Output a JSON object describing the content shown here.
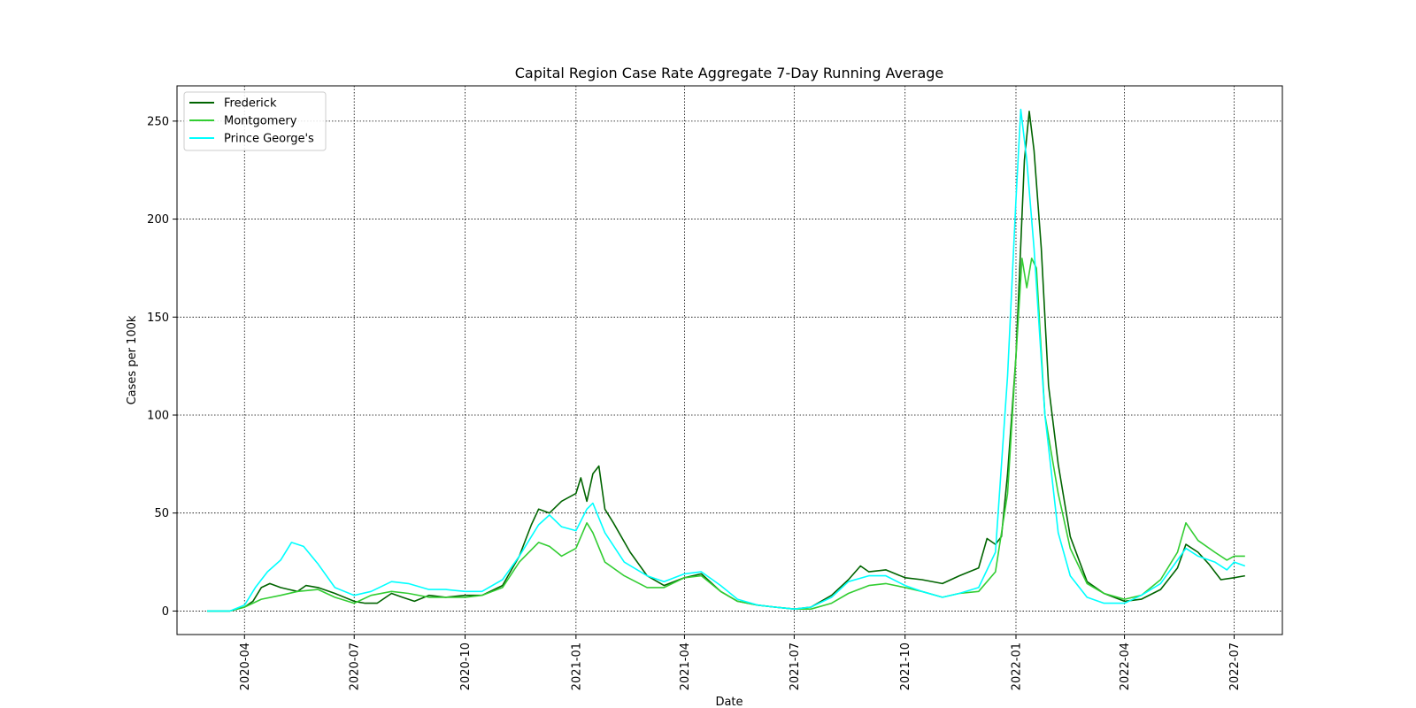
{
  "chart_data": {
    "type": "line",
    "title": "Capital Region Case Rate Aggregate 7-Day Running Average",
    "xlabel": "Date",
    "ylabel": "Cases per 100k",
    "x_type": "date",
    "xlim": [
      "2020-02-05",
      "2022-08-10"
    ],
    "ylim": [
      -12,
      268
    ],
    "x_ticks": [
      "2020-04",
      "2020-07",
      "2020-10",
      "2021-01",
      "2021-04",
      "2021-07",
      "2021-10",
      "2022-01",
      "2022-04",
      "2022-07"
    ],
    "y_ticks": [
      0,
      50,
      100,
      150,
      200,
      250
    ],
    "grid": true,
    "legend_position": "top-left",
    "series": [
      {
        "name": "Frederick",
        "color": "#006400",
        "points": [
          [
            "2020-03-01",
            0
          ],
          [
            "2020-03-20",
            0
          ],
          [
            "2020-04-01",
            2
          ],
          [
            "2020-04-08",
            5
          ],
          [
            "2020-04-15",
            12
          ],
          [
            "2020-04-22",
            14
          ],
          [
            "2020-05-01",
            12
          ],
          [
            "2020-05-08",
            11
          ],
          [
            "2020-05-15",
            10
          ],
          [
            "2020-05-22",
            13
          ],
          [
            "2020-06-01",
            12
          ],
          [
            "2020-06-15",
            9
          ],
          [
            "2020-07-01",
            5
          ],
          [
            "2020-07-10",
            4
          ],
          [
            "2020-07-20",
            4
          ],
          [
            "2020-08-01",
            9
          ],
          [
            "2020-08-10",
            7
          ],
          [
            "2020-08-20",
            5
          ],
          [
            "2020-09-01",
            8
          ],
          [
            "2020-09-15",
            7
          ],
          [
            "2020-10-01",
            8
          ],
          [
            "2020-10-15",
            8
          ],
          [
            "2020-11-01",
            13
          ],
          [
            "2020-11-15",
            28
          ],
          [
            "2020-11-25",
            44
          ],
          [
            "2020-12-01",
            52
          ],
          [
            "2020-12-10",
            50
          ],
          [
            "2020-12-20",
            56
          ],
          [
            "2021-01-01",
            60
          ],
          [
            "2021-01-05",
            68
          ],
          [
            "2021-01-10",
            56
          ],
          [
            "2021-01-15",
            70
          ],
          [
            "2021-01-20",
            74
          ],
          [
            "2021-01-25",
            52
          ],
          [
            "2021-02-01",
            45
          ],
          [
            "2021-02-15",
            30
          ],
          [
            "2021-03-01",
            18
          ],
          [
            "2021-03-15",
            13
          ],
          [
            "2021-04-01",
            17
          ],
          [
            "2021-04-15",
            19
          ],
          [
            "2021-05-01",
            10
          ],
          [
            "2021-05-15",
            5
          ],
          [
            "2021-06-01",
            3
          ],
          [
            "2021-06-15",
            2
          ],
          [
            "2021-07-01",
            1
          ],
          [
            "2021-07-15",
            2
          ],
          [
            "2021-08-01",
            8
          ],
          [
            "2021-08-15",
            16
          ],
          [
            "2021-08-25",
            23
          ],
          [
            "2021-09-01",
            20
          ],
          [
            "2021-09-15",
            21
          ],
          [
            "2021-10-01",
            17
          ],
          [
            "2021-10-15",
            16
          ],
          [
            "2021-11-01",
            14
          ],
          [
            "2021-11-15",
            18
          ],
          [
            "2021-12-01",
            22
          ],
          [
            "2021-12-08",
            37
          ],
          [
            "2021-12-15",
            34
          ],
          [
            "2021-12-20",
            38
          ],
          [
            "2021-12-25",
            70
          ],
          [
            "2022-01-01",
            130
          ],
          [
            "2022-01-08",
            230
          ],
          [
            "2022-01-12",
            255
          ],
          [
            "2022-01-16",
            235
          ],
          [
            "2022-01-22",
            185
          ],
          [
            "2022-01-28",
            115
          ],
          [
            "2022-02-05",
            75
          ],
          [
            "2022-02-15",
            38
          ],
          [
            "2022-03-01",
            15
          ],
          [
            "2022-03-15",
            9
          ],
          [
            "2022-04-01",
            5
          ],
          [
            "2022-04-15",
            6
          ],
          [
            "2022-05-01",
            11
          ],
          [
            "2022-05-15",
            22
          ],
          [
            "2022-05-22",
            34
          ],
          [
            "2022-06-01",
            30
          ],
          [
            "2022-06-10",
            24
          ],
          [
            "2022-06-20",
            16
          ],
          [
            "2022-07-01",
            17
          ],
          [
            "2022-07-10",
            18
          ]
        ]
      },
      {
        "name": "Montgomery",
        "color": "#32cd32",
        "points": [
          [
            "2020-03-01",
            0
          ],
          [
            "2020-03-20",
            0
          ],
          [
            "2020-04-01",
            2
          ],
          [
            "2020-04-15",
            6
          ],
          [
            "2020-05-01",
            8
          ],
          [
            "2020-05-15",
            10
          ],
          [
            "2020-06-01",
            11
          ],
          [
            "2020-06-15",
            7
          ],
          [
            "2020-07-01",
            4
          ],
          [
            "2020-07-15",
            8
          ],
          [
            "2020-08-01",
            10
          ],
          [
            "2020-08-15",
            9
          ],
          [
            "2020-09-01",
            7
          ],
          [
            "2020-09-15",
            7
          ],
          [
            "2020-10-01",
            7
          ],
          [
            "2020-10-15",
            8
          ],
          [
            "2020-11-01",
            12
          ],
          [
            "2020-11-15",
            25
          ],
          [
            "2020-12-01",
            35
          ],
          [
            "2020-12-10",
            33
          ],
          [
            "2020-12-20",
            28
          ],
          [
            "2021-01-01",
            32
          ],
          [
            "2021-01-10",
            45
          ],
          [
            "2021-01-15",
            40
          ],
          [
            "2021-01-25",
            25
          ],
          [
            "2021-02-10",
            18
          ],
          [
            "2021-03-01",
            12
          ],
          [
            "2021-03-15",
            12
          ],
          [
            "2021-04-01",
            17
          ],
          [
            "2021-04-15",
            18
          ],
          [
            "2021-05-01",
            10
          ],
          [
            "2021-05-15",
            5
          ],
          [
            "2021-06-01",
            3
          ],
          [
            "2021-06-15",
            2
          ],
          [
            "2021-07-01",
            1
          ],
          [
            "2021-07-15",
            1
          ],
          [
            "2021-08-01",
            4
          ],
          [
            "2021-08-15",
            9
          ],
          [
            "2021-09-01",
            13
          ],
          [
            "2021-09-15",
            14
          ],
          [
            "2021-10-01",
            12
          ],
          [
            "2021-10-15",
            10
          ],
          [
            "2021-11-01",
            7
          ],
          [
            "2021-11-15",
            9
          ],
          [
            "2021-12-01",
            10
          ],
          [
            "2021-12-15",
            20
          ],
          [
            "2021-12-25",
            60
          ],
          [
            "2022-01-01",
            130
          ],
          [
            "2022-01-06",
            180
          ],
          [
            "2022-01-10",
            165
          ],
          [
            "2022-01-14",
            180
          ],
          [
            "2022-01-18",
            175
          ],
          [
            "2022-01-25",
            100
          ],
          [
            "2022-02-05",
            60
          ],
          [
            "2022-02-15",
            32
          ],
          [
            "2022-03-01",
            14
          ],
          [
            "2022-03-15",
            9
          ],
          [
            "2022-04-01",
            6
          ],
          [
            "2022-04-15",
            8
          ],
          [
            "2022-05-01",
            16
          ],
          [
            "2022-05-15",
            30
          ],
          [
            "2022-05-22",
            45
          ],
          [
            "2022-06-01",
            36
          ],
          [
            "2022-06-15",
            30
          ],
          [
            "2022-06-25",
            26
          ],
          [
            "2022-07-01",
            28
          ],
          [
            "2022-07-10",
            28
          ]
        ]
      },
      {
        "name": "Prince George's",
        "color": "#00ffff",
        "points": [
          [
            "2020-03-01",
            0
          ],
          [
            "2020-03-20",
            0
          ],
          [
            "2020-04-01",
            3
          ],
          [
            "2020-04-10",
            12
          ],
          [
            "2020-04-20",
            20
          ],
          [
            "2020-05-01",
            26
          ],
          [
            "2020-05-10",
            35
          ],
          [
            "2020-05-20",
            33
          ],
          [
            "2020-06-01",
            24
          ],
          [
            "2020-06-15",
            12
          ],
          [
            "2020-07-01",
            8
          ],
          [
            "2020-07-15",
            10
          ],
          [
            "2020-08-01",
            15
          ],
          [
            "2020-08-15",
            14
          ],
          [
            "2020-09-01",
            11
          ],
          [
            "2020-09-15",
            11
          ],
          [
            "2020-10-01",
            10
          ],
          [
            "2020-10-15",
            10
          ],
          [
            "2020-11-01",
            16
          ],
          [
            "2020-11-15",
            28
          ],
          [
            "2020-11-25",
            38
          ],
          [
            "2020-12-01",
            44
          ],
          [
            "2020-12-10",
            49
          ],
          [
            "2020-12-20",
            43
          ],
          [
            "2021-01-01",
            41
          ],
          [
            "2021-01-10",
            52
          ],
          [
            "2021-01-15",
            55
          ],
          [
            "2021-01-25",
            40
          ],
          [
            "2021-02-10",
            25
          ],
          [
            "2021-03-01",
            18
          ],
          [
            "2021-03-15",
            15
          ],
          [
            "2021-04-01",
            19
          ],
          [
            "2021-04-15",
            20
          ],
          [
            "2021-05-01",
            13
          ],
          [
            "2021-05-15",
            6
          ],
          [
            "2021-06-01",
            3
          ],
          [
            "2021-06-15",
            2
          ],
          [
            "2021-07-01",
            1
          ],
          [
            "2021-07-15",
            2
          ],
          [
            "2021-08-01",
            7
          ],
          [
            "2021-08-15",
            15
          ],
          [
            "2021-09-01",
            18
          ],
          [
            "2021-09-15",
            18
          ],
          [
            "2021-10-01",
            13
          ],
          [
            "2021-10-15",
            10
          ],
          [
            "2021-11-01",
            7
          ],
          [
            "2021-11-15",
            9
          ],
          [
            "2021-12-01",
            12
          ],
          [
            "2021-12-15",
            30
          ],
          [
            "2021-12-25",
            120
          ],
          [
            "2022-01-01",
            210
          ],
          [
            "2022-01-05",
            256
          ],
          [
            "2022-01-10",
            230
          ],
          [
            "2022-01-16",
            185
          ],
          [
            "2022-01-25",
            100
          ],
          [
            "2022-02-05",
            40
          ],
          [
            "2022-02-15",
            18
          ],
          [
            "2022-03-01",
            7
          ],
          [
            "2022-03-15",
            4
          ],
          [
            "2022-04-01",
            4
          ],
          [
            "2022-04-15",
            8
          ],
          [
            "2022-05-01",
            14
          ],
          [
            "2022-05-15",
            26
          ],
          [
            "2022-05-22",
            32
          ],
          [
            "2022-06-01",
            28
          ],
          [
            "2022-06-15",
            25
          ],
          [
            "2022-06-25",
            21
          ],
          [
            "2022-07-01",
            25
          ],
          [
            "2022-07-10",
            23
          ]
        ]
      }
    ]
  }
}
